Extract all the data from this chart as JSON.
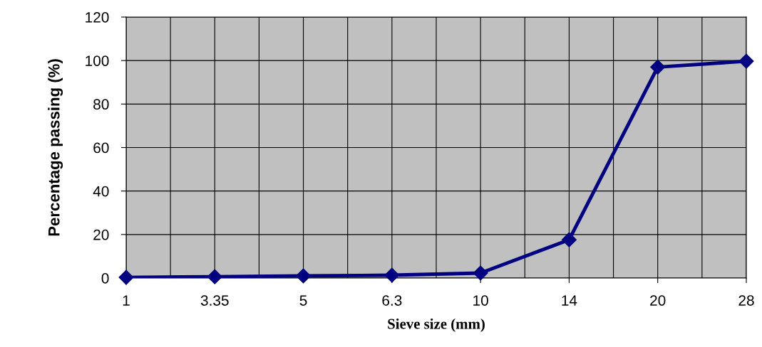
{
  "chart_data": {
    "type": "line",
    "xlabel": "Sieve size (mm)",
    "ylabel": "Percentage passing (%)",
    "categories": [
      "1",
      "3.35",
      "5",
      "6.3",
      "10",
      "14",
      "20",
      "28"
    ],
    "series": [
      {
        "color": "#000080",
        "values": [
          0.3,
          0.6,
          1,
          1.3,
          2.3,
          17.6,
          97,
          99.7
        ]
      }
    ],
    "ylim": [
      0,
      120
    ],
    "yticks": [
      0,
      20,
      40,
      60,
      80,
      100,
      120
    ],
    "grid": true,
    "marker": "diamond",
    "line_style": "solid"
  }
}
